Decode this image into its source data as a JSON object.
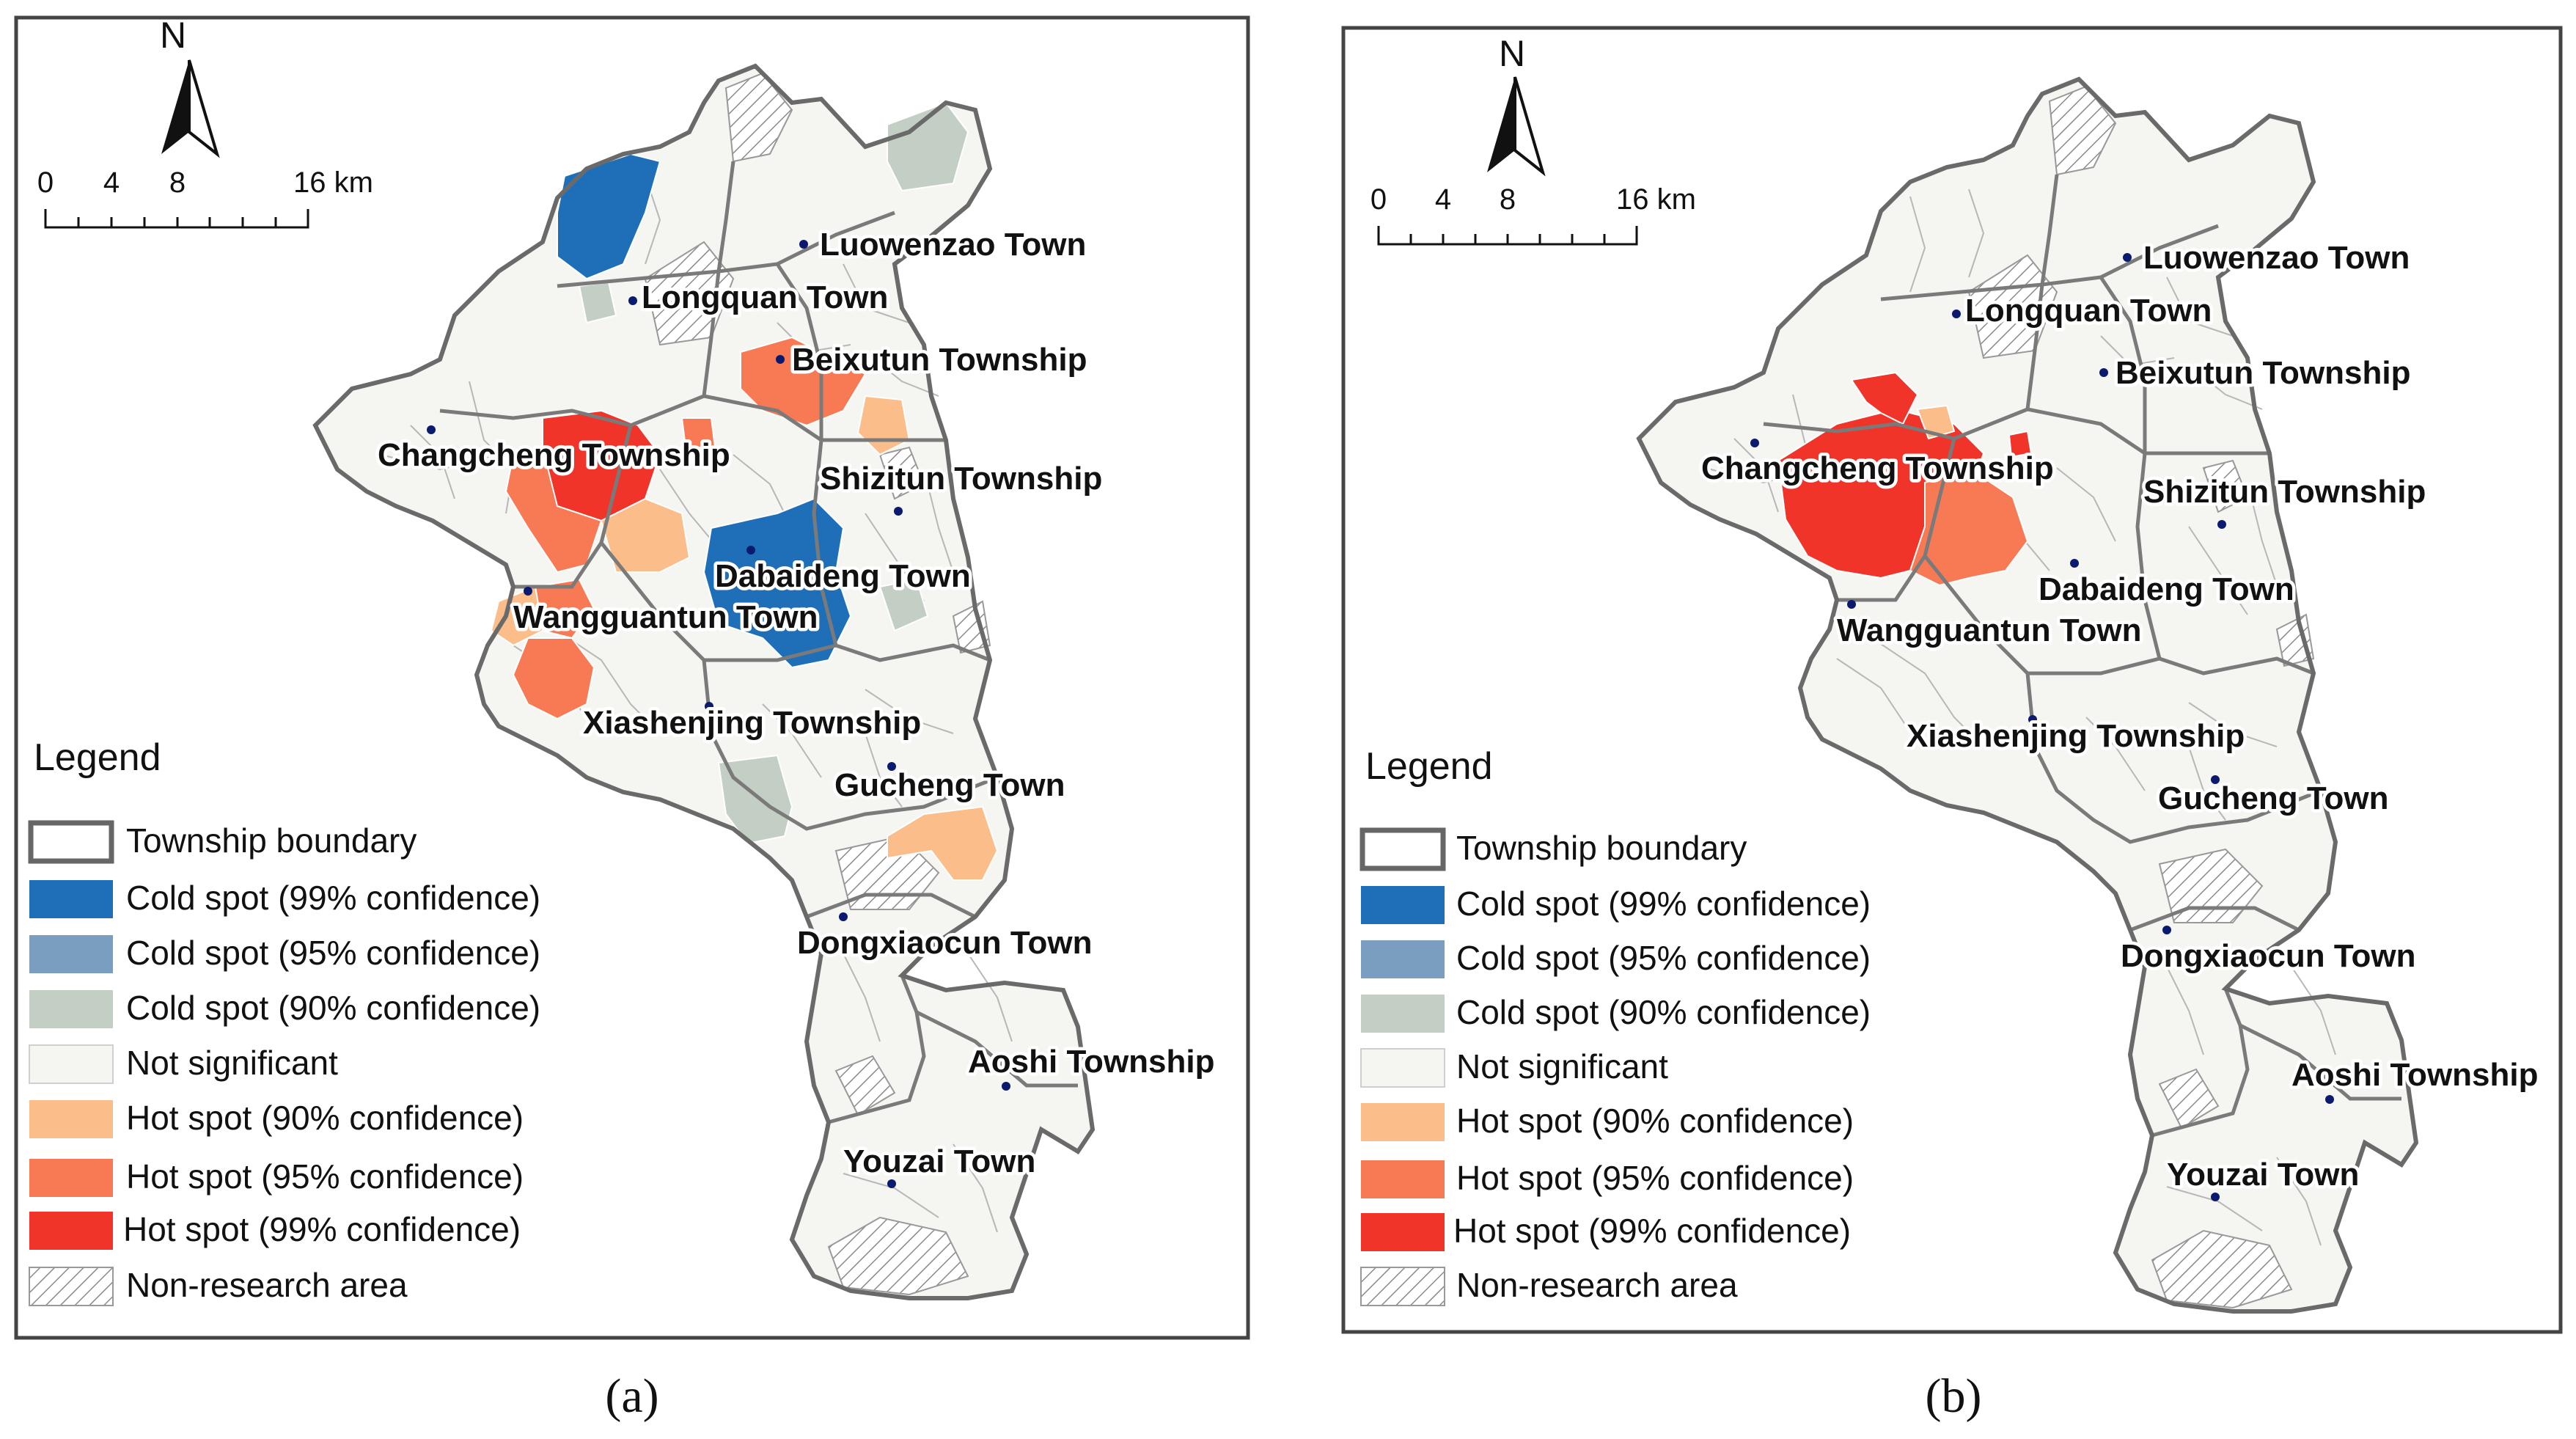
{
  "colors": {
    "cold99": "#1f6fb8",
    "cold95": "#7a9ec0",
    "cold90": "#c3cfc4",
    "notsig": "#f5f5f1",
    "hot90": "#fbbd8a",
    "hot95": "#f77a55",
    "hot99": "#f0342a",
    "boundary": "#555555",
    "frame": "#444444"
  },
  "legend": {
    "title": "Legend",
    "items": [
      {
        "label": "Township boundary",
        "kind": "boundary"
      },
      {
        "label": "Cold spot (99% confidence)",
        "kind": "cold99"
      },
      {
        "label": "Cold spot (95% confidence)",
        "kind": "cold95"
      },
      {
        "label": "Cold spot (90% confidence)",
        "kind": "cold90"
      },
      {
        "label": "Not significant",
        "kind": "notsig"
      },
      {
        "label": "Hot spot (90% confidence)",
        "kind": "hot90"
      },
      {
        "label": "Hot spot (95% confidence)",
        "kind": "hot95"
      },
      {
        "label": "Hot spot (99% confidence)",
        "kind": "hot99"
      },
      {
        "label": "Non-research area",
        "kind": "hatch"
      }
    ]
  },
  "scale_bar": {
    "ticks": [
      "0",
      "4",
      "8",
      "16 km"
    ]
  },
  "north_arrow": {
    "label": "N"
  },
  "towns": [
    "Luowenzao Town",
    "Longquan Town",
    "Beixutun Township",
    "Changcheng Township",
    "Shizitun Township",
    "Dabaideng Town",
    "Wangguantun Town",
    "Xiashenjing Township",
    "Gucheng Town",
    "Dongxiaocun Town",
    "Aoshi Township",
    "Youzai Town"
  ],
  "panels": [
    {
      "caption": "(a)",
      "spots": [
        {
          "class": "cold99",
          "area": "northwest near Longquan Town"
        },
        {
          "class": "cold90",
          "area": "north near Luowenzao Town"
        },
        {
          "class": "hot95",
          "area": "Beixutun Township"
        },
        {
          "class": "hot90",
          "area": "east of Beixutun Township"
        },
        {
          "class": "hot99",
          "area": "Changcheng Township"
        },
        {
          "class": "hot95",
          "area": "Changcheng Township south"
        },
        {
          "class": "hot90",
          "area": "between Changcheng and Dabaideng"
        },
        {
          "class": "cold99",
          "area": "Dabaideng Town"
        },
        {
          "class": "cold90",
          "area": "east of Dabaideng Town"
        },
        {
          "class": "hot95",
          "area": "Wangguantun Town"
        },
        {
          "class": "hot90",
          "area": "Wangguantun Town west"
        },
        {
          "class": "cold90",
          "area": "Xiashenjing Township"
        },
        {
          "class": "hot90",
          "area": "Gucheng Town"
        }
      ]
    },
    {
      "caption": "(b)",
      "spots": [
        {
          "class": "hot99",
          "area": "Changcheng Township"
        },
        {
          "class": "hot95",
          "area": "Changcheng Township east"
        },
        {
          "class": "hot90",
          "area": "north of Changcheng Township"
        },
        {
          "class": "hot99",
          "area": "south of Longquan Town"
        }
      ]
    }
  ]
}
